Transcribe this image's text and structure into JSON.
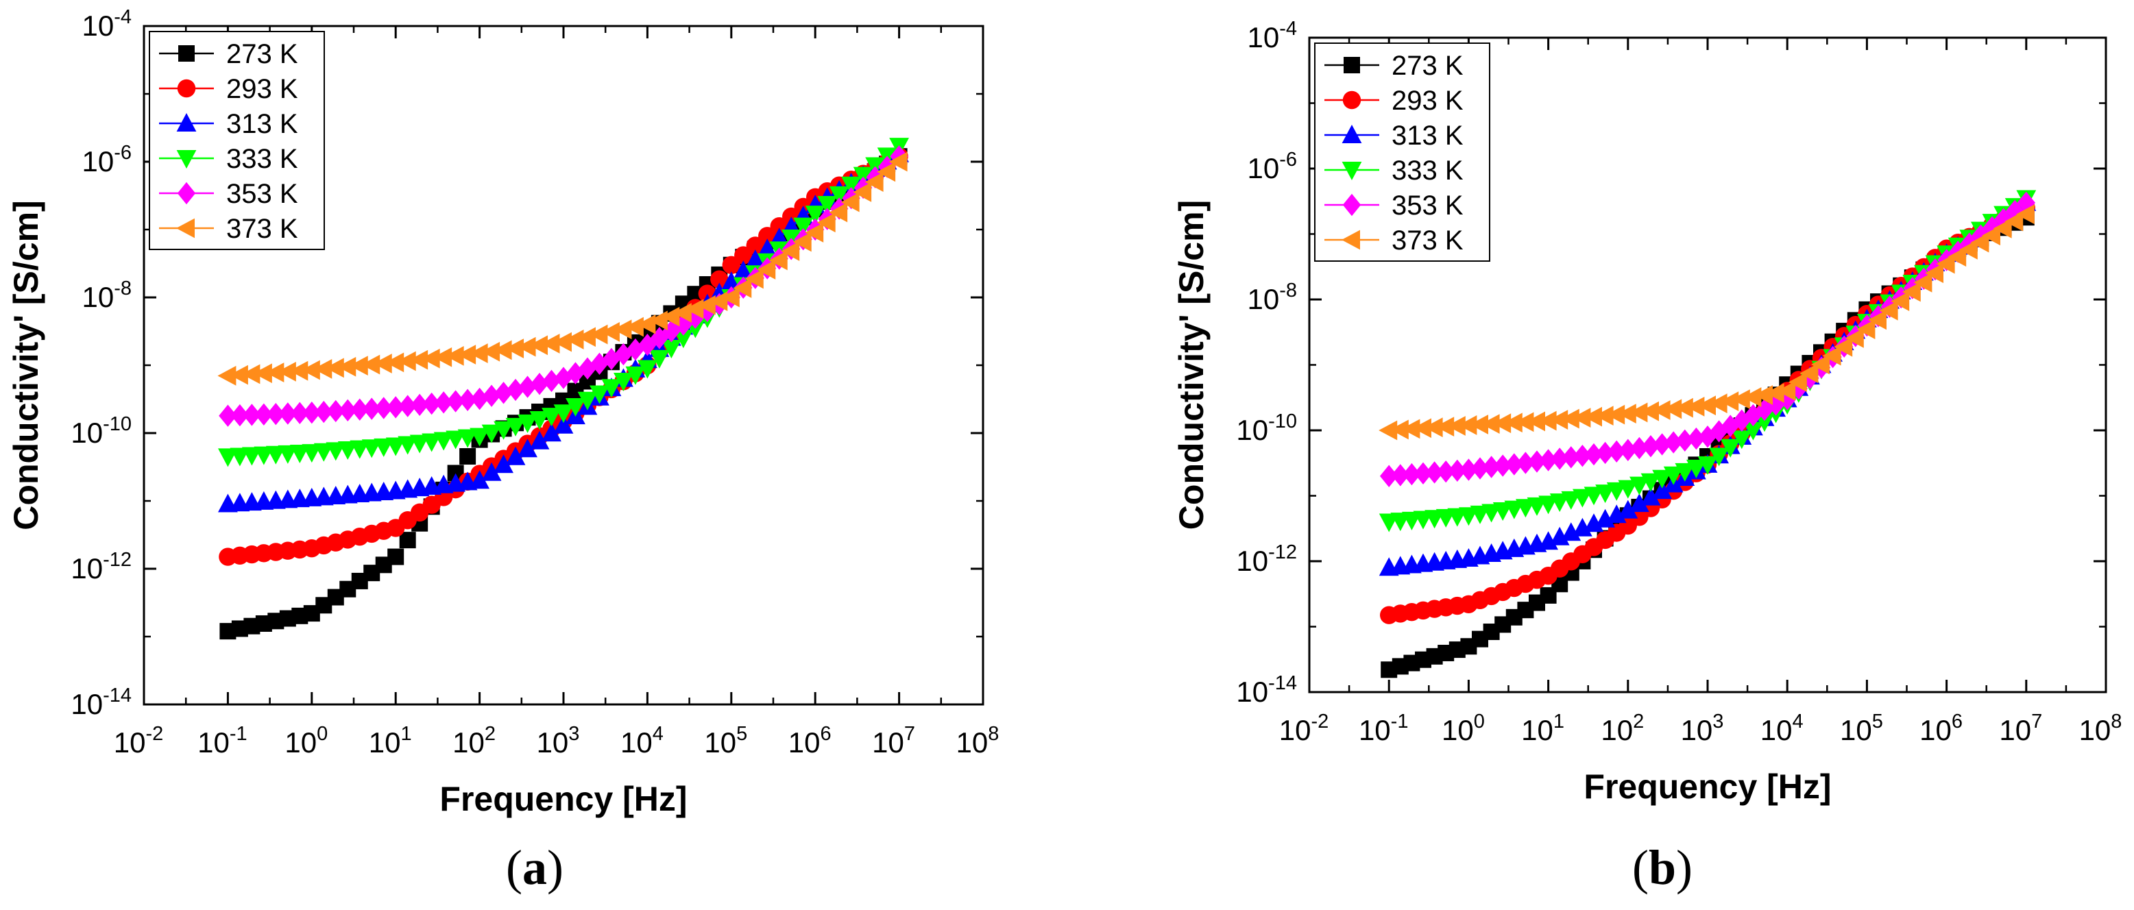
{
  "figure": {
    "panels": [
      {
        "id": "a",
        "label": "(a)",
        "label_letter": "a"
      },
      {
        "id": "b",
        "label": "(b)",
        "label_letter": "b"
      }
    ]
  },
  "chart_data": [
    {
      "panel": "a",
      "type": "scatter",
      "xlabel": "Frequency [Hz]",
      "ylabel": "Conductivity' [S/cm]",
      "xscale": "log",
      "yscale": "log",
      "xlim_exp": [
        -2,
        8
      ],
      "ylim_exp": [
        -14,
        -4
      ],
      "x_tick_exponents": [
        -2,
        -1,
        0,
        1,
        2,
        3,
        4,
        5,
        6,
        7,
        8
      ],
      "y_tick_exponents": [
        -14,
        -12,
        -10,
        -8,
        -6,
        -4
      ],
      "tick_base": "10",
      "legend_position": "top-left",
      "series": [
        {
          "name": "273 K",
          "color": "#000000",
          "marker": "square",
          "points": [
            [
              0.1,
              1.2e-13
            ],
            [
              1,
              2.2e-13
            ],
            [
              10,
              1.5e-12
            ],
            [
              100,
              8e-11
            ],
            [
              1000,
              3e-10
            ],
            [
              10000,
              3e-09
            ],
            [
              100000,
              3e-08
            ],
            [
              1000000,
              2e-07
            ],
            [
              10000000,
              1.2e-06
            ]
          ]
        },
        {
          "name": "293 K",
          "color": "#ff0000",
          "marker": "circle",
          "points": [
            [
              0.1,
              1.5e-12
            ],
            [
              1,
              2e-12
            ],
            [
              10,
              4e-12
            ],
            [
              100,
              2.5e-11
            ],
            [
              1000,
              1.5e-10
            ],
            [
              10000,
              1e-09
            ],
            [
              100000,
              3e-08
            ],
            [
              1000000,
              3e-07
            ],
            [
              10000000,
              1.2e-06
            ]
          ]
        },
        {
          "name": "313 K",
          "color": "#0000ff",
          "marker": "triangle-up",
          "points": [
            [
              0.1,
              9e-12
            ],
            [
              1,
              1.1e-11
            ],
            [
              10,
              1.4e-11
            ],
            [
              100,
              2e-11
            ],
            [
              1000,
              1.3e-10
            ],
            [
              10000,
              1.2e-09
            ],
            [
              100000,
              1.7e-08
            ],
            [
              1000000,
              2.3e-07
            ],
            [
              10000000,
              1.3e-06
            ]
          ]
        },
        {
          "name": "333 K",
          "color": "#00ff00",
          "marker": "triangle-down",
          "points": [
            [
              0.1,
              4.5e-11
            ],
            [
              1,
              5.2e-11
            ],
            [
              10,
              6.5e-11
            ],
            [
              100,
              9e-11
            ],
            [
              1000,
              2e-10
            ],
            [
              10000,
              9e-10
            ],
            [
              100000,
              1e-08
            ],
            [
              1000000,
              1.7e-07
            ],
            [
              10000000,
              1.7e-06
            ]
          ]
        },
        {
          "name": "353 K",
          "color": "#ff00ff",
          "marker": "diamond",
          "points": [
            [
              0.1,
              1.8e-10
            ],
            [
              1,
              2e-10
            ],
            [
              10,
              2.4e-10
            ],
            [
              100,
              3.2e-10
            ],
            [
              1000,
              6.5e-10
            ],
            [
              10000,
              2e-09
            ],
            [
              100000,
              1e-08
            ],
            [
              1000000,
              1e-07
            ],
            [
              10000000,
              1.2e-06
            ]
          ]
        },
        {
          "name": "373 K",
          "color": "#ff8c1a",
          "marker": "triangle-left",
          "points": [
            [
              0.1,
              7e-10
            ],
            [
              1,
              8.5e-10
            ],
            [
              10,
              1.1e-09
            ],
            [
              100,
              1.5e-09
            ],
            [
              1000,
              2.2e-09
            ],
            [
              10000,
              4e-09
            ],
            [
              100000,
              1e-08
            ],
            [
              1000000,
              9e-08
            ],
            [
              10000000,
              1e-06
            ]
          ]
        }
      ]
    },
    {
      "panel": "b",
      "type": "scatter",
      "xlabel": "Frequency [Hz]",
      "ylabel": "Conductivity' [S/cm]",
      "xscale": "log",
      "yscale": "log",
      "xlim_exp": [
        -2,
        8
      ],
      "ylim_exp": [
        -14,
        -4
      ],
      "x_tick_exponents": [
        -2,
        -1,
        0,
        1,
        2,
        3,
        4,
        5,
        6,
        7,
        8
      ],
      "y_tick_exponents": [
        -14,
        -12,
        -10,
        -8,
        -6,
        -4
      ],
      "tick_base": "10",
      "legend_position": "top-left",
      "series": [
        {
          "name": "273 K",
          "color": "#000000",
          "marker": "square",
          "points": [
            [
              0.1,
              2.2e-14
            ],
            [
              1,
              5e-14
            ],
            [
              10,
              3e-13
            ],
            [
              100,
              5e-12
            ],
            [
              1000,
              4e-11
            ],
            [
              10000,
              5e-10
            ],
            [
              100000,
              7e-09
            ],
            [
              1000000,
              5e-08
            ],
            [
              10000000,
              1.8e-07
            ]
          ]
        },
        {
          "name": "293 K",
          "color": "#ff0000",
          "marker": "circle",
          "points": [
            [
              0.1,
              1.5e-13
            ],
            [
              1,
              2.2e-13
            ],
            [
              10,
              6e-13
            ],
            [
              100,
              3.5e-12
            ],
            [
              1000,
              3e-11
            ],
            [
              10000,
              4e-10
            ],
            [
              100000,
              6e-09
            ],
            [
              1000000,
              6e-08
            ],
            [
              10000000,
              2.5e-07
            ]
          ]
        },
        {
          "name": "313 K",
          "color": "#0000ff",
          "marker": "triangle-up",
          "points": [
            [
              0.1,
              8e-13
            ],
            [
              1,
              1.1e-12
            ],
            [
              10,
              2e-12
            ],
            [
              100,
              6e-12
            ],
            [
              1000,
              3e-11
            ],
            [
              10000,
              3e-10
            ],
            [
              100000,
              5e-09
            ],
            [
              1000000,
              5e-08
            ],
            [
              10000000,
              3e-07
            ]
          ]
        },
        {
          "name": "333 K",
          "color": "#00ff00",
          "marker": "triangle-down",
          "points": [
            [
              0.1,
              4e-12
            ],
            [
              1,
              5e-12
            ],
            [
              10,
              7.5e-12
            ],
            [
              100,
              1.3e-11
            ],
            [
              1000,
              3e-11
            ],
            [
              10000,
              2.5e-10
            ],
            [
              100000,
              4.5e-09
            ],
            [
              1000000,
              5e-08
            ],
            [
              10000000,
              3.5e-07
            ]
          ]
        },
        {
          "name": "353 K",
          "color": "#ff00ff",
          "marker": "diamond",
          "points": [
            [
              0.1,
              2e-11
            ],
            [
              1,
              2.5e-11
            ],
            [
              10,
              3.5e-11
            ],
            [
              100,
              5e-11
            ],
            [
              1000,
              8e-11
            ],
            [
              10000,
              3e-10
            ],
            [
              100000,
              4e-09
            ],
            [
              1000000,
              4e-08
            ],
            [
              10000000,
              3e-07
            ]
          ]
        },
        {
          "name": "373 K",
          "color": "#ff8c1a",
          "marker": "triangle-left",
          "points": [
            [
              0.1,
              1e-10
            ],
            [
              1,
              1.2e-10
            ],
            [
              10,
              1.4e-10
            ],
            [
              100,
              1.8e-10
            ],
            [
              1000,
              2.4e-10
            ],
            [
              10000,
              4e-10
            ],
            [
              100000,
              3.5e-09
            ],
            [
              1000000,
              3.5e-08
            ],
            [
              10000000,
              2e-07
            ]
          ]
        }
      ]
    }
  ]
}
